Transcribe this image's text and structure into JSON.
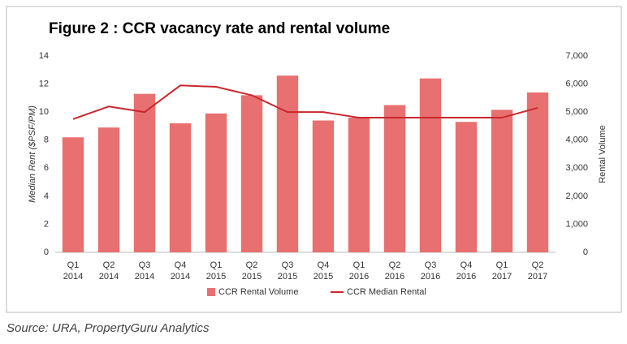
{
  "chart_data": {
    "type": "bar_line",
    "title": "Figure 2 : CCR vacancy rate and rental volume",
    "y_label": "Median Rent ($PSF/PM)",
    "y2_label": "Rental Volume",
    "source": "Source: URA, PropertyGuru Analytics",
    "categories": [
      [
        "Q1",
        "2014"
      ],
      [
        "Q2",
        "2014"
      ],
      [
        "Q3",
        "2014"
      ],
      [
        "Q4",
        "2014"
      ],
      [
        "Q1",
        "2015"
      ],
      [
        "Q2",
        "2015"
      ],
      [
        "Q3",
        "2015"
      ],
      [
        "Q4",
        "2015"
      ],
      [
        "Q1",
        "2016"
      ],
      [
        "Q2",
        "2016"
      ],
      [
        "Q3",
        "2016"
      ],
      [
        "Q4",
        "2016"
      ],
      [
        "Q1",
        "2017"
      ],
      [
        "Q2",
        "2017"
      ]
    ],
    "series": [
      {
        "name": "CCR Rental Volume",
        "type": "bar",
        "axis": "y2",
        "color": "#e87070",
        "values": [
          4100,
          4450,
          5650,
          4600,
          4950,
          5600,
          6300,
          4700,
          4800,
          5250,
          6200,
          4650,
          5080,
          5700
        ]
      },
      {
        "name": "CCR Median Rental",
        "type": "line",
        "axis": "y",
        "color": "#c8282d",
        "values": [
          9.5,
          10.4,
          10.0,
          11.9,
          11.8,
          11.2,
          10.0,
          10.0,
          9.6,
          9.6,
          9.6,
          9.6,
          9.6,
          10.3
        ]
      }
    ],
    "ylim": [
      0,
      14
    ],
    "yticks": [
      0,
      2,
      4,
      6,
      8,
      10,
      12,
      14
    ],
    "y2lim": [
      0,
      7000
    ],
    "y2ticks": [
      0,
      {
        "value": 1000,
        "label": "1,000"
      },
      {
        "value": 2000,
        "label": "2,000"
      },
      {
        "value": 3000,
        "label": "3,000"
      },
      {
        "value": 4000,
        "label": "4,000"
      },
      {
        "value": 5000,
        "label": "5,000"
      },
      {
        "value": 6000,
        "label": "6,000"
      },
      {
        "value": 7000,
        "label": "7,000"
      }
    ],
    "legend": "bottom"
  }
}
